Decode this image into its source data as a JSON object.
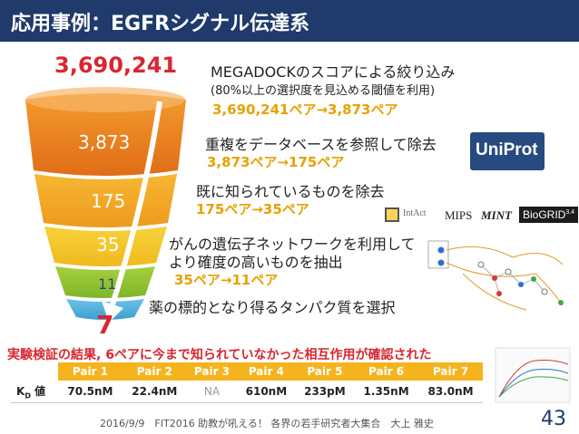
{
  "header": {
    "title": "応用事例：EGFRシグナル伝達系"
  },
  "funnel": {
    "top_value": "3,690,241",
    "levels": [
      "3,873",
      "175",
      "35",
      "11"
    ],
    "final_value": "7"
  },
  "steps": [
    {
      "line1": "MEGADOCKのスコアによる絞り込み",
      "line2": "(80%以上の選択度を見込める閾値を利用)",
      "result": "3,690,241ペア→3,873ペア"
    },
    {
      "line1": "重複をデータベースを参照して除去",
      "result": "3,873ペア→175ペア"
    },
    {
      "line1": "既に知られているものを除去",
      "result": "175ペア→35ペア"
    },
    {
      "line1": "がんの遺伝子ネットワークを利用して",
      "line2": "より確度の高いものを抽出",
      "result": "35ペア→11ペア"
    },
    {
      "line1": "薬の標的となり得るタンパク質を選択"
    }
  ],
  "logos": {
    "uniprot": "UniProt",
    "intact": "IntAct",
    "mips": "MIPS",
    "mint": "MINT",
    "biogrid": "BioGRID",
    "biogrid_version": "3.4"
  },
  "result_text": "実験検証の結果, 6ペアに今まで知られていなかった相互作用が確認された",
  "table": {
    "row_label": "K",
    "row_label_sub": "D",
    "row_label_tail": " 値",
    "headers": [
      "Pair 1",
      "Pair 2",
      "Pair 3",
      "Pair 4",
      "Pair 5",
      "Pair 6",
      "Pair 7"
    ],
    "values": [
      "70.5nM",
      "22.4nM",
      "NA",
      "610nM",
      "233pM",
      "1.35nM",
      "83.0nM"
    ]
  },
  "footer": {
    "text": "2016/9/9　FIT2016 助教が吼える！ 各界の若手研究者大集合　大上 雅史",
    "page": "43"
  },
  "colors": {
    "title_bg": "#1f3a6b",
    "accent_red": "#d8262f",
    "accent_orange": "#e6a100",
    "table_header": "#f5b41e"
  }
}
